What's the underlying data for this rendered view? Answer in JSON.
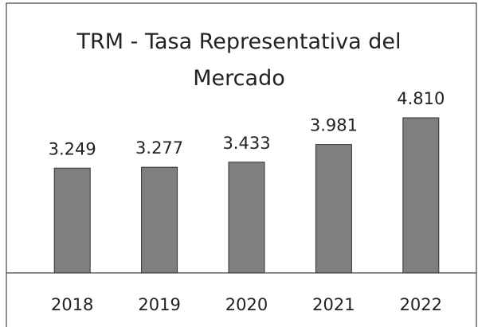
{
  "chart_data": {
    "type": "bar",
    "title": "TRM - Tasa Representativa del Mercado",
    "categories": [
      "2018",
      "2019",
      "2020",
      "2021",
      "2022"
    ],
    "values": [
      3249,
      3277,
      3433,
      3981,
      4810
    ],
    "value_labels": [
      "3.249",
      "3.277",
      "3.433",
      "3.981",
      "4.810"
    ],
    "color": "#7f7f7f"
  }
}
